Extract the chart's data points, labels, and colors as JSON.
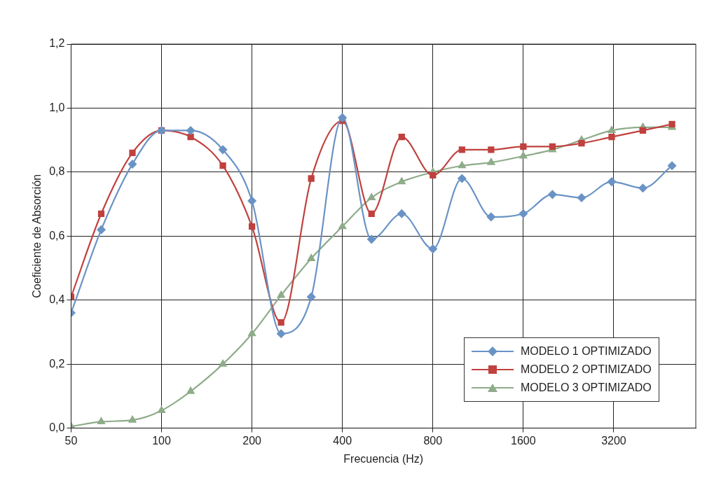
{
  "chart_data": {
    "type": "line",
    "xlabel": "Frecuencia (Hz)",
    "ylabel": "Coeficiente de Absorción",
    "x": [
      50,
      63,
      80,
      100,
      125,
      160,
      200,
      250,
      315,
      400,
      500,
      630,
      800,
      1000,
      1250,
      1600,
      2000,
      2500,
      3150,
      4000,
      5000
    ],
    "log": "x",
    "xlim": [
      50,
      6000
    ],
    "xticks": [
      50,
      100,
      200,
      400,
      800,
      1600,
      3200
    ],
    "ylim": [
      0,
      1.2
    ],
    "yticks": [
      {
        "value": 0,
        "label": "0,0"
      },
      {
        "value": 0.2,
        "label": "0,2"
      },
      {
        "value": 0.4,
        "label": "0,4"
      },
      {
        "value": 0.6,
        "label": "0,6"
      },
      {
        "value": 0.8,
        "label": "0,8"
      },
      {
        "value": 1,
        "label": "1,0"
      },
      {
        "value": 1.2,
        "label": "1,2"
      }
    ],
    "grid": true,
    "legend": "bottom right",
    "series": [
      {
        "name": "MODELO 1 OPTIMIZADO",
        "color": "#6a93c5",
        "marker": "diamond",
        "values": [
          0.36,
          0.62,
          0.825,
          0.93,
          0.93,
          0.87,
          0.71,
          0.295,
          0.41,
          0.97,
          0.59,
          0.67,
          0.56,
          0.78,
          0.66,
          0.67,
          0.73,
          0.72,
          0.77,
          0.75,
          0.82
        ]
      },
      {
        "name": "MODELO 2 OPTIMIZADO",
        "color": "#c0413e",
        "marker": "square",
        "values": [
          0.41,
          0.67,
          0.86,
          0.93,
          0.91,
          0.82,
          0.63,
          0.33,
          0.78,
          0.96,
          0.67,
          0.91,
          0.79,
          0.87,
          0.87,
          0.88,
          0.88,
          0.89,
          0.91,
          0.93,
          0.95
        ]
      },
      {
        "name": "MODELO 3 OPTIMIZADO",
        "color": "#8fac8a",
        "marker": "triangle",
        "values": [
          0.005,
          0.02,
          0.025,
          0.055,
          0.115,
          0.2,
          0.295,
          0.415,
          0.53,
          0.63,
          0.72,
          0.77,
          0.8,
          0.82,
          0.83,
          0.85,
          0.87,
          0.9,
          0.93,
          0.94,
          0.94
        ]
      }
    ]
  }
}
